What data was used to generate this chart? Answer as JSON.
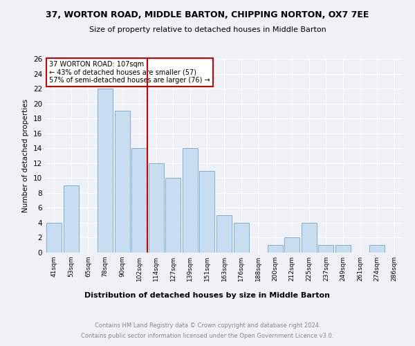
{
  "title": "37, WORTON ROAD, MIDDLE BARTON, CHIPPING NORTON, OX7 7EE",
  "subtitle": "Size of property relative to detached houses in Middle Barton",
  "xlabel": "Distribution of detached houses by size in Middle Barton",
  "ylabel": "Number of detached properties",
  "categories": [
    "41sqm",
    "53sqm",
    "65sqm",
    "78sqm",
    "90sqm",
    "102sqm",
    "114sqm",
    "127sqm",
    "139sqm",
    "151sqm",
    "163sqm",
    "176sqm",
    "188sqm",
    "200sqm",
    "212sqm",
    "225sqm",
    "237sqm",
    "249sqm",
    "261sqm",
    "274sqm",
    "286sqm"
  ],
  "values": [
    4,
    9,
    0,
    22,
    19,
    14,
    12,
    10,
    14,
    11,
    5,
    4,
    0,
    1,
    2,
    4,
    1,
    1,
    0,
    1,
    0
  ],
  "bar_color": "#c9ddf0",
  "bar_edge_color": "#7bafd4",
  "vline_color": "#cc0000",
  "annotation_title": "37 WORTON ROAD: 107sqm",
  "annotation_line1": "← 43% of detached houses are smaller (57)",
  "annotation_line2": "57% of semi-detached houses are larger (76) →",
  "annotation_box_color": "#ffffff",
  "annotation_box_edge": "#cc0000",
  "ylim": [
    0,
    26
  ],
  "yticks": [
    0,
    2,
    4,
    6,
    8,
    10,
    12,
    14,
    16,
    18,
    20,
    22,
    24,
    26
  ],
  "footer1": "Contains HM Land Registry data © Crown copyright and database right 2024.",
  "footer2": "Contains public sector information licensed under the Open Government Licence v3.0.",
  "bg_color": "#eef2f7",
  "plot_bg_color": "#eef2f7"
}
